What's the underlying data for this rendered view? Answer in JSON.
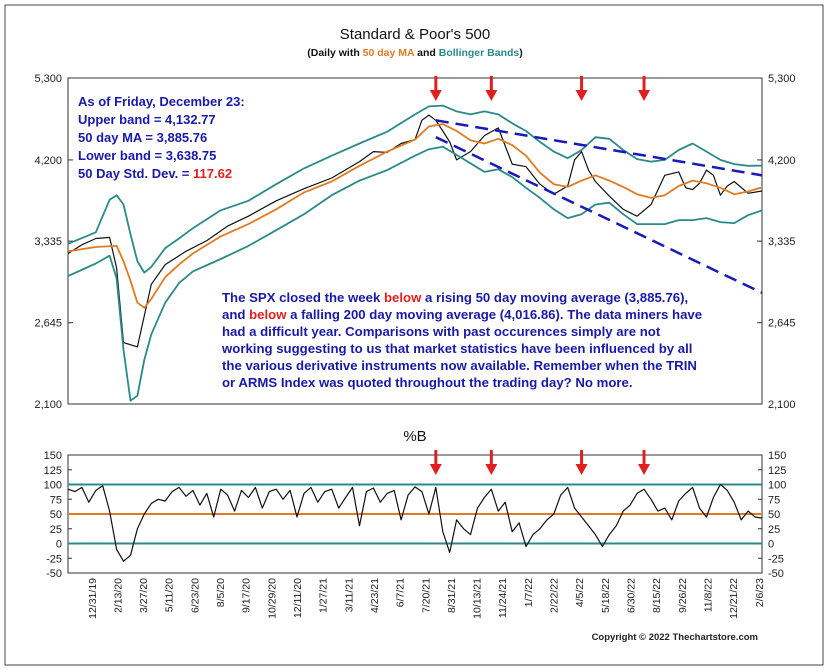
{
  "colors": {
    "price": "#111111",
    "ma": "#e07b22",
    "bands": "#2a8a8a",
    "trend": "#1a1ab8",
    "arrow": "#e02020",
    "text_blue": "#1a1aa8",
    "highlight_red": "#e02020",
    "hline_teal": "#2a8a8a",
    "hline_orange": "#e07b22"
  },
  "chart_data": [
    {
      "type": "line",
      "title": "Standard & Poor's 500",
      "subtitle": {
        "prefix": "(Daily with ",
        "ma_label": "50 day MA",
        "mid": " and ",
        "bb_label": "Bollinger Bands",
        "suffix": ")"
      },
      "y_ticks": [
        "5,300",
        "4,200",
        "3,335",
        "2,645",
        "2,100"
      ],
      "y_tick_values": [
        5300,
        4200,
        3335,
        2645,
        2100
      ],
      "ylim": [
        2100,
        5300
      ],
      "y_scale": "log",
      "legend_box": {
        "line1": "As of Friday,  December 23:",
        "line2": "Upper band = 4,132.77",
        "line3": "50 day MA = 3,885.76",
        "line4": "Lower band = 3,638.75",
        "line5_label": "50 Day Std. Dev. = ",
        "line5_value": "117.62"
      },
      "commentary": {
        "l1a": "The SPX closed the week ",
        "l1b": "below",
        "l1c": " a rising 50 day moving average (3,885.76),",
        "l2a": "and ",
        "l2b": "below",
        "l2c": " a falling 200 day moving average (4,016.86).  The data miners have",
        "l3": "had a difficult year.  Comparisons with past occurences simply are not",
        "l4": "working suggesting to us that market statistics have been influenced by all",
        "l5": "the various derivative instruments now available.  Remember when the TRIN",
        "l6": "or ARMS Index was quoted throughout the trading day?  No more."
      },
      "series": [
        {
          "name": "SPX",
          "x": [
            0,
            2,
            4,
            6,
            7,
            8,
            10,
            12,
            14,
            17,
            20,
            23,
            26,
            30,
            34,
            38,
            42,
            44,
            46,
            48,
            50,
            51,
            52,
            53,
            54,
            55,
            56,
            58,
            60,
            62,
            64,
            66,
            68,
            70,
            72,
            73,
            74,
            75,
            76,
            78,
            80,
            82,
            84,
            86,
            88,
            89,
            90,
            91,
            92,
            93,
            94,
            95,
            96,
            98,
            100
          ],
          "values": [
            3220,
            3300,
            3360,
            3370,
            3090,
            2500,
            2470,
            2950,
            3120,
            3240,
            3340,
            3480,
            3580,
            3740,
            3870,
            3990,
            4180,
            4300,
            4290,
            4400,
            4450,
            4700,
            4770,
            4700,
            4560,
            4420,
            4200,
            4300,
            4500,
            4600,
            4150,
            4120,
            3920,
            3810,
            3900,
            4200,
            4300,
            4080,
            3950,
            3790,
            3650,
            3580,
            3700,
            4020,
            4060,
            3880,
            3860,
            3930,
            4080,
            4020,
            3800,
            3900,
            3950,
            3820,
            3845
          ]
        },
        {
          "name": "50 day MA",
          "x": [
            0,
            4,
            7,
            8,
            9,
            10,
            11,
            12,
            14,
            16,
            18,
            22,
            26,
            30,
            34,
            38,
            42,
            46,
            50,
            52,
            54,
            56,
            58,
            60,
            62,
            64,
            66,
            68,
            70,
            72,
            74,
            76,
            78,
            80,
            82,
            84,
            86,
            88,
            90,
            92,
            94,
            96,
            98,
            100
          ],
          "values": [
            3240,
            3280,
            3290,
            3150,
            2980,
            2800,
            2760,
            2830,
            3010,
            3120,
            3220,
            3380,
            3500,
            3650,
            3830,
            3950,
            4130,
            4300,
            4450,
            4620,
            4650,
            4560,
            4440,
            4400,
            4460,
            4380,
            4250,
            4050,
            3920,
            3890,
            3960,
            4020,
            3960,
            3890,
            3810,
            3770,
            3800,
            3900,
            3960,
            3930,
            3880,
            3810,
            3840,
            3885
          ]
        },
        {
          "name": "Upper band",
          "x": [
            0,
            4,
            6,
            7,
            8,
            9,
            10,
            11,
            12,
            14,
            16,
            18,
            22,
            26,
            30,
            34,
            38,
            42,
            46,
            50,
            52,
            54,
            56,
            58,
            60,
            62,
            64,
            66,
            68,
            70,
            72,
            74,
            76,
            78,
            80,
            82,
            84,
            86,
            88,
            90,
            92,
            94,
            96,
            98,
            100
          ],
          "values": [
            3310,
            3420,
            3750,
            3800,
            3700,
            3400,
            3150,
            3050,
            3100,
            3270,
            3360,
            3460,
            3640,
            3740,
            3920,
            4100,
            4250,
            4400,
            4550,
            4780,
            4890,
            4900,
            4820,
            4780,
            4820,
            4780,
            4660,
            4560,
            4420,
            4300,
            4220,
            4320,
            4480,
            4460,
            4320,
            4210,
            4180,
            4200,
            4320,
            4400,
            4300,
            4200,
            4150,
            4130,
            4133
          ]
        },
        {
          "name": "Lower band",
          "x": [
            0,
            4,
            6,
            7,
            8,
            9,
            10,
            11,
            12,
            14,
            16,
            18,
            22,
            26,
            30,
            34,
            38,
            42,
            46,
            50,
            52,
            54,
            56,
            58,
            60,
            62,
            64,
            66,
            68,
            70,
            72,
            74,
            76,
            78,
            80,
            82,
            84,
            86,
            88,
            90,
            92,
            94,
            96,
            98,
            100
          ],
          "values": [
            3020,
            3130,
            3200,
            3000,
            2450,
            2120,
            2150,
            2380,
            2560,
            2800,
            2960,
            3060,
            3170,
            3290,
            3440,
            3600,
            3800,
            3960,
            4080,
            4250,
            4330,
            4360,
            4260,
            4160,
            4060,
            4090,
            4000,
            3880,
            3770,
            3650,
            3560,
            3600,
            3700,
            3720,
            3600,
            3500,
            3500,
            3500,
            3540,
            3540,
            3560,
            3520,
            3510,
            3590,
            3639
          ]
        }
      ],
      "x_ticks": [
        "12/31/19",
        "2/13/20",
        "3/27/20",
        "5/11/20",
        "6/23/20",
        "8/5/20",
        "9/17/20",
        "10/29/20",
        "12/11/20",
        "1/27/21",
        "3/11/21",
        "4/23/21",
        "6/7/21",
        "7/20/21",
        "8/31/21",
        "10/13/21",
        "11/24/21",
        "1/7/22",
        "2/22/22",
        "4/5/22",
        "5/18/22",
        "6/30/22",
        "8/15/22",
        "9/26/22",
        "11/8/22",
        "12/21/22",
        "2/6/23"
      ],
      "trendlines": [
        {
          "label": "upper trendline",
          "x1": 53,
          "y1": 4700,
          "x2": 100,
          "y2": 4020
        },
        {
          "label": "lower trendline",
          "x1": 53,
          "y1": 4480,
          "x2": 100,
          "y2": 2880
        }
      ],
      "arrows_x": [
        53,
        61,
        74,
        83
      ]
    },
    {
      "type": "line",
      "title": "%B",
      "y_ticks": [
        "150",
        "125",
        "100",
        "75",
        "50",
        "25",
        "0",
        "-25",
        "-50"
      ],
      "y_tick_values": [
        150,
        125,
        100,
        75,
        50,
        25,
        0,
        -25,
        -50
      ],
      "ylim": [
        -50,
        150
      ],
      "reference_lines": [
        100,
        50,
        0
      ],
      "series": [
        {
          "name": "%B",
          "x": [
            0,
            1,
            2,
            3,
            4,
            5,
            6,
            7,
            8,
            9,
            10,
            11,
            12,
            13,
            14,
            15,
            16,
            17,
            18,
            19,
            20,
            21,
            22,
            23,
            24,
            25,
            26,
            27,
            28,
            29,
            30,
            31,
            32,
            33,
            34,
            35,
            36,
            37,
            38,
            39,
            40,
            41,
            42,
            43,
            44,
            45,
            46,
            47,
            48,
            49,
            50,
            51,
            52,
            53,
            54,
            55,
            56,
            57,
            58,
            59,
            60,
            61,
            62,
            63,
            64,
            65,
            66,
            67,
            68,
            69,
            70,
            71,
            72,
            73,
            74,
            75,
            76,
            77,
            78,
            79,
            80,
            81,
            82,
            83,
            84,
            85,
            86,
            87,
            88,
            89,
            90,
            91,
            92,
            93,
            94,
            95,
            96,
            97,
            98,
            99,
            100
          ],
          "values": [
            92,
            88,
            95,
            70,
            90,
            98,
            55,
            -10,
            -30,
            -20,
            25,
            50,
            68,
            75,
            72,
            88,
            95,
            80,
            90,
            65,
            85,
            45,
            92,
            82,
            55,
            90,
            78,
            95,
            60,
            88,
            92,
            75,
            90,
            45,
            85,
            95,
            70,
            88,
            92,
            60,
            78,
            95,
            30,
            88,
            94,
            70,
            85,
            90,
            40,
            82,
            96,
            88,
            50,
            95,
            20,
            -15,
            40,
            25,
            15,
            60,
            78,
            92,
            55,
            70,
            20,
            35,
            -5,
            15,
            25,
            40,
            50,
            82,
            95,
            60,
            45,
            30,
            15,
            -5,
            15,
            30,
            55,
            65,
            85,
            92,
            75,
            55,
            60,
            40,
            72,
            85,
            95,
            60,
            45,
            78,
            100,
            90,
            70,
            40,
            55,
            45,
            43
          ]
        }
      ],
      "arrows_x": [
        53,
        61,
        74,
        83
      ]
    }
  ],
  "copyright": "Copyright © 2022 Thechartstore.com"
}
